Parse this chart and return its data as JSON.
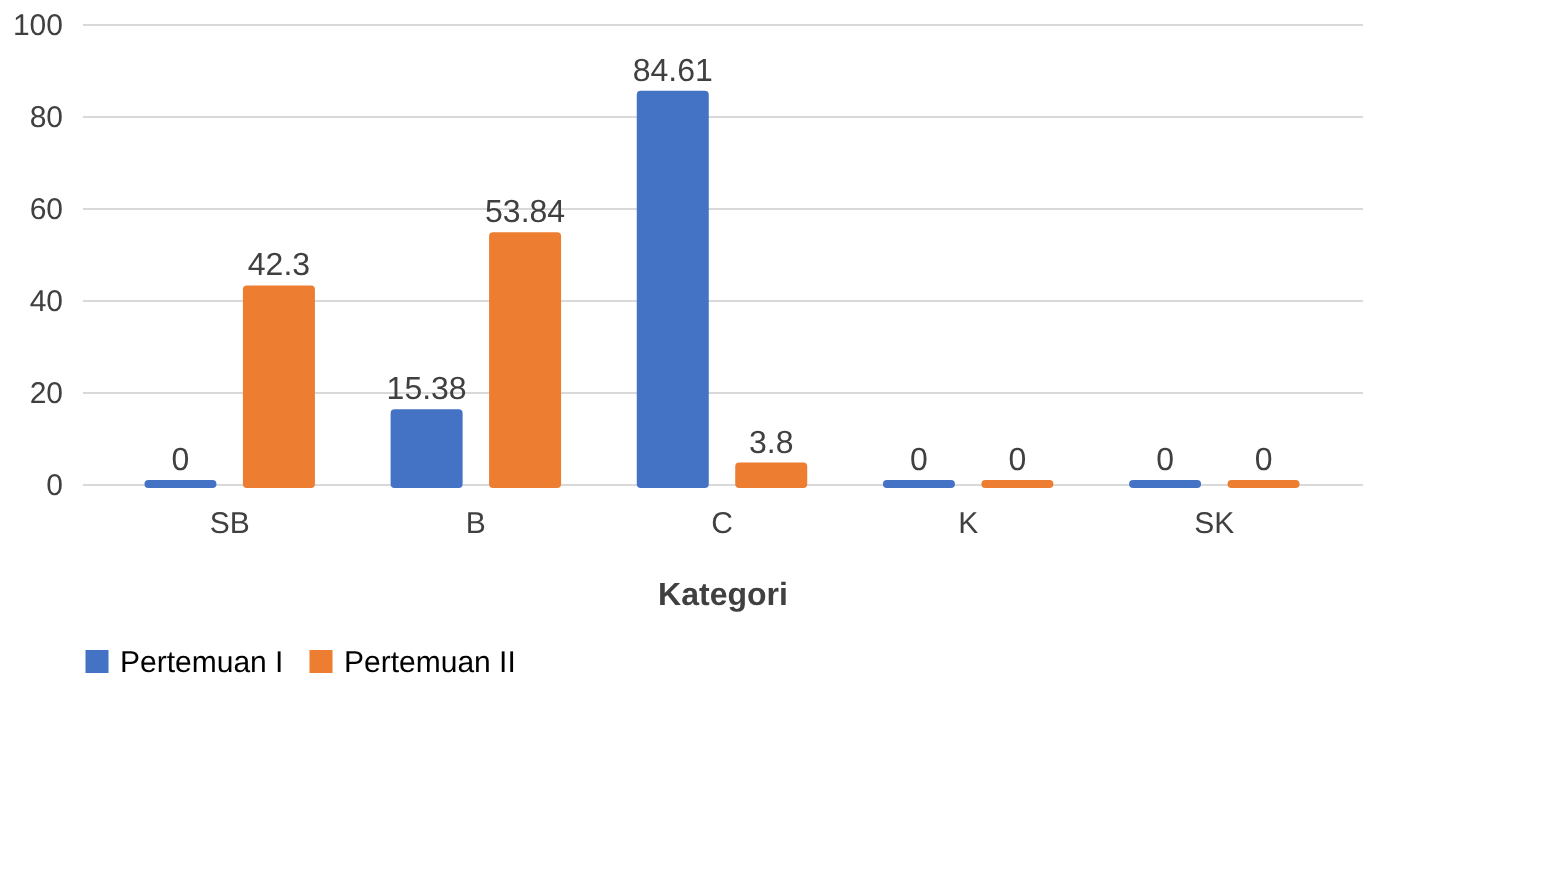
{
  "chart_data": {
    "type": "bar",
    "xlabel": "Kategori",
    "categories": [
      "SB",
      "B",
      "C",
      "K",
      "SK"
    ],
    "series": [
      {
        "name": "Pertemuan I",
        "color": "#4472c4",
        "values": [
          0,
          15.38,
          84.61,
          0,
          0
        ]
      },
      {
        "name": "Pertemuan II",
        "color": "#ed7d31",
        "values": [
          42.3,
          53.84,
          3.8,
          0,
          0
        ]
      }
    ],
    "ylim": [
      0,
      100
    ],
    "yticks": [
      0,
      20,
      40,
      60,
      80,
      100
    ],
    "grid": "y",
    "legend": "bottom",
    "data_labels": true
  }
}
